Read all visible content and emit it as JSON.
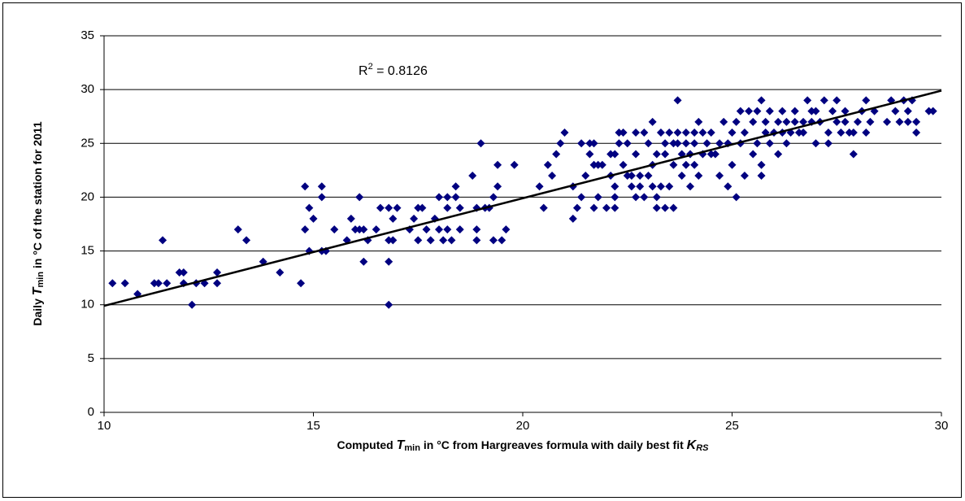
{
  "chart_data": {
    "type": "scatter",
    "xlabel": [
      "Computed ",
      "T",
      "min",
      " in °C from Hargreaves formula with daily best fit ",
      "K",
      "RS"
    ],
    "ylabel": [
      "Daily ",
      "T",
      "min",
      " in °C of the station for 2011"
    ],
    "annotation": [
      "R",
      "2",
      " = 0.8126"
    ],
    "xlim": [
      10,
      30
    ],
    "xticks": [
      10,
      15,
      20,
      25,
      30
    ],
    "ylim": [
      0,
      35
    ],
    "yticks": [
      0,
      5,
      10,
      15,
      20,
      25,
      30,
      35
    ],
    "grid": true,
    "series": [
      {
        "color": "#000080",
        "x": [
          10.2,
          10.5,
          10.8,
          11.2,
          11.3,
          11.4,
          11.5,
          11.8,
          11.9,
          11.9,
          12.1,
          12.2,
          12.4,
          12.7,
          12.7,
          13.2,
          13.4,
          13.8,
          14.2,
          14.7,
          14.8,
          14.8,
          14.9,
          15.0,
          14.9,
          15.2,
          15.2,
          15.2,
          15.3,
          15.5,
          15.8,
          15.9,
          16.0,
          16.1,
          16.2,
          16.1,
          16.2,
          16.3,
          16.5,
          16.6,
          16.8,
          16.8,
          16.8,
          16.8,
          16.9,
          17.0,
          16.9,
          17.3,
          17.4,
          17.5,
          17.5,
          17.6,
          17.7,
          17.8,
          17.9,
          18.0,
          18.0,
          18.1,
          18.2,
          18.2,
          18.2,
          18.3,
          18.4,
          18.4,
          18.5,
          18.5,
          18.8,
          18.9,
          18.9,
          19.0,
          18.9,
          19.1,
          19.2,
          19.3,
          19.3,
          19.4,
          19.4,
          19.5,
          19.6,
          19.8,
          20.4,
          20.5,
          20.6,
          20.7,
          20.8,
          20.9,
          21.0,
          21.2,
          21.2,
          21.3,
          21.4,
          21.4,
          21.5,
          21.6,
          21.6,
          21.7,
          21.8,
          21.7,
          21.7,
          21.8,
          21.9,
          22.0,
          22.1,
          22.1,
          22.2,
          22.2,
          22.2,
          22.2,
          22.3,
          22.3,
          22.4,
          22.4,
          22.5,
          22.5,
          22.6,
          22.6,
          22.7,
          22.7,
          22.7,
          22.8,
          22.8,
          22.9,
          22.9,
          23.0,
          23.0,
          23.1,
          23.1,
          23.1,
          23.2,
          23.2,
          23.2,
          23.3,
          23.3,
          23.4,
          23.4,
          23.4,
          23.5,
          23.5,
          23.6,
          23.6,
          23.6,
          23.7,
          23.7,
          23.7,
          23.8,
          23.8,
          23.9,
          23.9,
          23.9,
          24.0,
          24.0,
          24.1,
          24.1,
          24.1,
          24.2,
          24.2,
          24.3,
          24.3,
          24.4,
          24.5,
          24.5,
          24.6,
          24.7,
          24.7,
          24.8,
          24.9,
          24.9,
          25.0,
          25.0,
          25.1,
          25.1,
          25.2,
          25.2,
          25.3,
          25.3,
          25.4,
          25.5,
          25.5,
          25.6,
          25.6,
          25.7,
          25.7,
          25.7,
          25.8,
          25.8,
          25.9,
          25.9,
          26.0,
          26.1,
          26.1,
          26.2,
          26.2,
          26.3,
          26.3,
          26.4,
          26.5,
          26.5,
          26.6,
          26.7,
          26.7,
          26.8,
          26.9,
          26.9,
          27.0,
          27.0,
          27.1,
          27.2,
          27.3,
          27.3,
          27.4,
          27.5,
          27.5,
          27.6,
          27.7,
          27.7,
          27.8,
          27.9,
          27.9,
          28.0,
          28.1,
          28.2,
          28.2,
          28.3,
          28.4,
          28.7,
          28.8,
          28.9,
          29.0,
          29.1,
          29.2,
          29.2,
          29.3,
          29.4,
          29.4,
          29.7,
          29.8
        ],
        "values": [
          12,
          12,
          11,
          12,
          12,
          16,
          12,
          13,
          13,
          12,
          10,
          12,
          12,
          13,
          12,
          17,
          16,
          14,
          13,
          12,
          21,
          17,
          15,
          18,
          19,
          21,
          20,
          15,
          15,
          17,
          16,
          18,
          17,
          20,
          14,
          17,
          17,
          16,
          17,
          19,
          19,
          16,
          14,
          10,
          16,
          19,
          18,
          17,
          18,
          19,
          16,
          19,
          17,
          16,
          18,
          20,
          17,
          16,
          20,
          19,
          17,
          16,
          21,
          20,
          19,
          17,
          22,
          19,
          16,
          25,
          17,
          19,
          19,
          20,
          16,
          23,
          21,
          16,
          17,
          23,
          21,
          19,
          23,
          22,
          24,
          25,
          26,
          21,
          18,
          19,
          25,
          20,
          22,
          25,
          24,
          23,
          20,
          25,
          19,
          23,
          23,
          19,
          22,
          24,
          24,
          21,
          20,
          19,
          26,
          25,
          23,
          26,
          22,
          25,
          21,
          22,
          20,
          24,
          26,
          21,
          22,
          20,
          26,
          22,
          25,
          23,
          27,
          21,
          19,
          20,
          24,
          26,
          21,
          25,
          19,
          24,
          26,
          21,
          25,
          19,
          23,
          29,
          26,
          25,
          24,
          22,
          26,
          23,
          25,
          24,
          21,
          26,
          23,
          25,
          22,
          27,
          24,
          26,
          25,
          24,
          26,
          24,
          22,
          25,
          27,
          21,
          25,
          26,
          23,
          27,
          20,
          28,
          25,
          22,
          26,
          28,
          24,
          27,
          25,
          28,
          22,
          23,
          29,
          26,
          27,
          25,
          28,
          26,
          24,
          27,
          26,
          28,
          25,
          27,
          26,
          28,
          27,
          26,
          27,
          26,
          29,
          28,
          27,
          25,
          28,
          27,
          29,
          26,
          25,
          28,
          27,
          29,
          26,
          28,
          27,
          26,
          24,
          26,
          27,
          28,
          29,
          26,
          27,
          28,
          27,
          29,
          28,
          27,
          29,
          28,
          27,
          29,
          26,
          27,
          28,
          28
        ]
      }
    ],
    "trendline": {
      "x": [
        10,
        30
      ],
      "values": [
        9.9,
        29.9
      ]
    }
  }
}
